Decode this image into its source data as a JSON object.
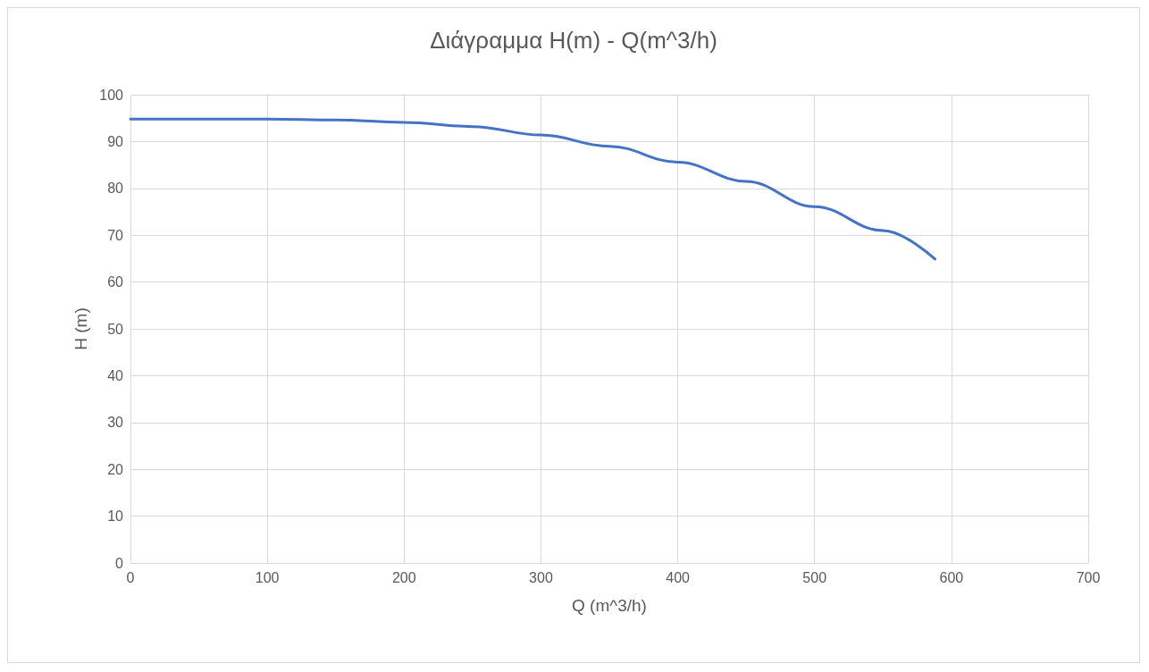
{
  "chart_data": {
    "type": "line",
    "title": "Διάγραμμα H(m) - Q(m^3/h)",
    "xlabel": "Q (m^3/h)",
    "ylabel": "H (m)",
    "x": [
      0,
      50,
      100,
      150,
      200,
      250,
      300,
      350,
      400,
      450,
      500,
      550,
      588
    ],
    "series": [
      {
        "color": "#4472c4",
        "values": [
          94.8,
          94.8,
          94.8,
          94.6,
          94.1,
          93.2,
          91.4,
          89.0,
          85.6,
          81.5,
          76.1,
          71.0,
          64.9
        ]
      }
    ],
    "xlim": [
      0,
      700
    ],
    "xticks": [
      0,
      100,
      200,
      300,
      400,
      500,
      600,
      700
    ],
    "ylim": [
      0,
      100
    ],
    "yticks": [
      0,
      10,
      20,
      30,
      40,
      50,
      60,
      70,
      80,
      90,
      100
    ],
    "grid": true,
    "marker": "none",
    "line_style": "solid"
  }
}
